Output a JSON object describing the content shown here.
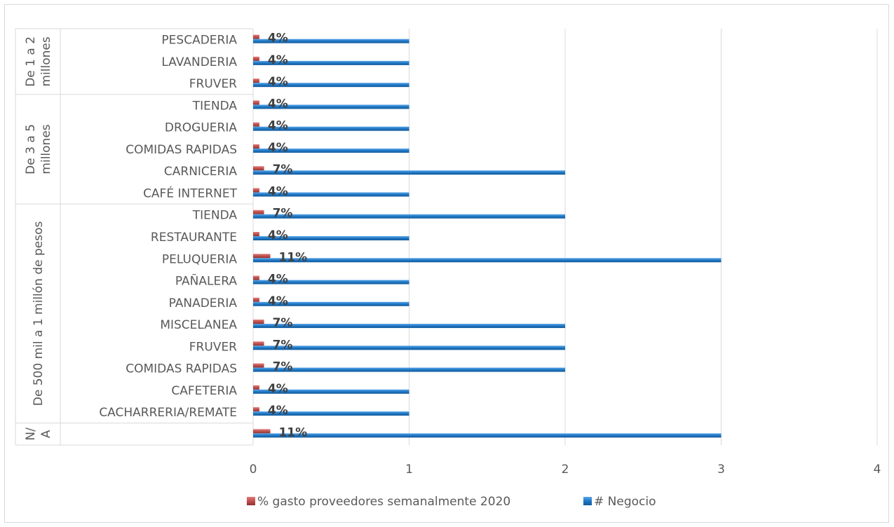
{
  "chart_data": {
    "type": "bar",
    "orientation": "horizontal",
    "xlim": [
      0,
      4
    ],
    "x_ticks": [
      "0",
      "1",
      "2",
      "3",
      "4"
    ],
    "grid": "vertical",
    "legend_position": "bottom",
    "groups": [
      {
        "label": "De 1 a 2 millones",
        "categories": [
          "PESCADERIA",
          "LAVANDERIA",
          "FRUVER"
        ]
      },
      {
        "label": "De 3 a 5 millones",
        "categories": [
          "TIENDA",
          "DROGUERIA",
          "COMIDAS RAPIDAS",
          "CARNICERIA",
          "CAFÉ INTERNET"
        ]
      },
      {
        "label": "De 500 mil a 1 millón de pesos",
        "categories": [
          "TIENDA",
          "RESTAURANTE",
          "PELUQUERIA",
          "PAÑALERA",
          "PANADERIA",
          "MISCELANEA",
          "FRUVER",
          "COMIDAS RAPIDAS",
          "CAFETERIA",
          "CACHARRERIA/REMATE"
        ]
      },
      {
        "label": "N/A",
        "categories": [
          ""
        ]
      }
    ],
    "series": [
      {
        "name": "% gasto proveedores semanalmente  2020",
        "color": "#c0504d",
        "values": [
          0.04,
          0.04,
          0.04,
          0.04,
          0.04,
          0.04,
          0.07,
          0.04,
          0.07,
          0.04,
          0.11,
          0.04,
          0.04,
          0.07,
          0.07,
          0.07,
          0.04,
          0.04,
          0.11
        ],
        "data_labels": [
          "4%",
          "4%",
          "4%",
          "4%",
          "4%",
          "4%",
          "7%",
          "4%",
          "7%",
          "4%",
          "11%",
          "4%",
          "4%",
          "7%",
          "7%",
          "7%",
          "4%",
          "4%",
          "11%"
        ]
      },
      {
        "name": "# Negocio",
        "color": "#1f77c4",
        "values": [
          1,
          1,
          1,
          1,
          1,
          1,
          2,
          1,
          2,
          1,
          3,
          1,
          1,
          2,
          2,
          2,
          1,
          1,
          3
        ]
      }
    ]
  },
  "legend": {
    "items": [
      {
        "label": "% gasto proveedores semanalmente  2020",
        "color": "#c0504d"
      },
      {
        "label": "# Negocio",
        "color": "#1f77c4"
      }
    ]
  }
}
